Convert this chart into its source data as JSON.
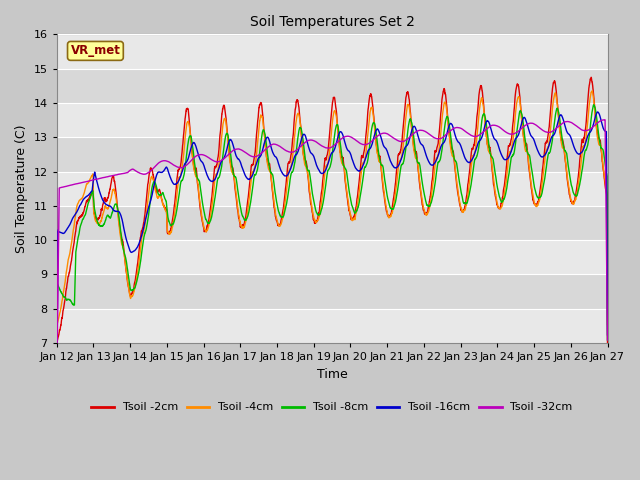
{
  "title": "Soil Temperatures Set 2",
  "xlabel": "Time",
  "ylabel": "Soil Temperature (C)",
  "ylim": [
    7.0,
    16.0
  ],
  "yticks": [
    7.0,
    8.0,
    9.0,
    10.0,
    11.0,
    12.0,
    13.0,
    14.0,
    15.0,
    16.0
  ],
  "colors": {
    "Tsoil -2cm": "#dd0000",
    "Tsoil -4cm": "#ff8c00",
    "Tsoil -8cm": "#00bb00",
    "Tsoil -16cm": "#0000cc",
    "Tsoil -32cm": "#bb00bb"
  },
  "x_labels": [
    "Jan 12",
    "Jan 13",
    "Jan 14",
    "Jan 15",
    "Jan 16",
    "Jan 17",
    "Jan 18",
    "Jan 19",
    "Jan 20",
    "Jan 21",
    "Jan 22",
    "Jan 23",
    "Jan 24",
    "Jan 25",
    "Jan 26",
    "Jan 27"
  ],
  "legend_label": "VR_met",
  "band_colors": [
    "#e8e8e8",
    "#d8d8d8"
  ],
  "fig_bg": "#c8c8c8"
}
